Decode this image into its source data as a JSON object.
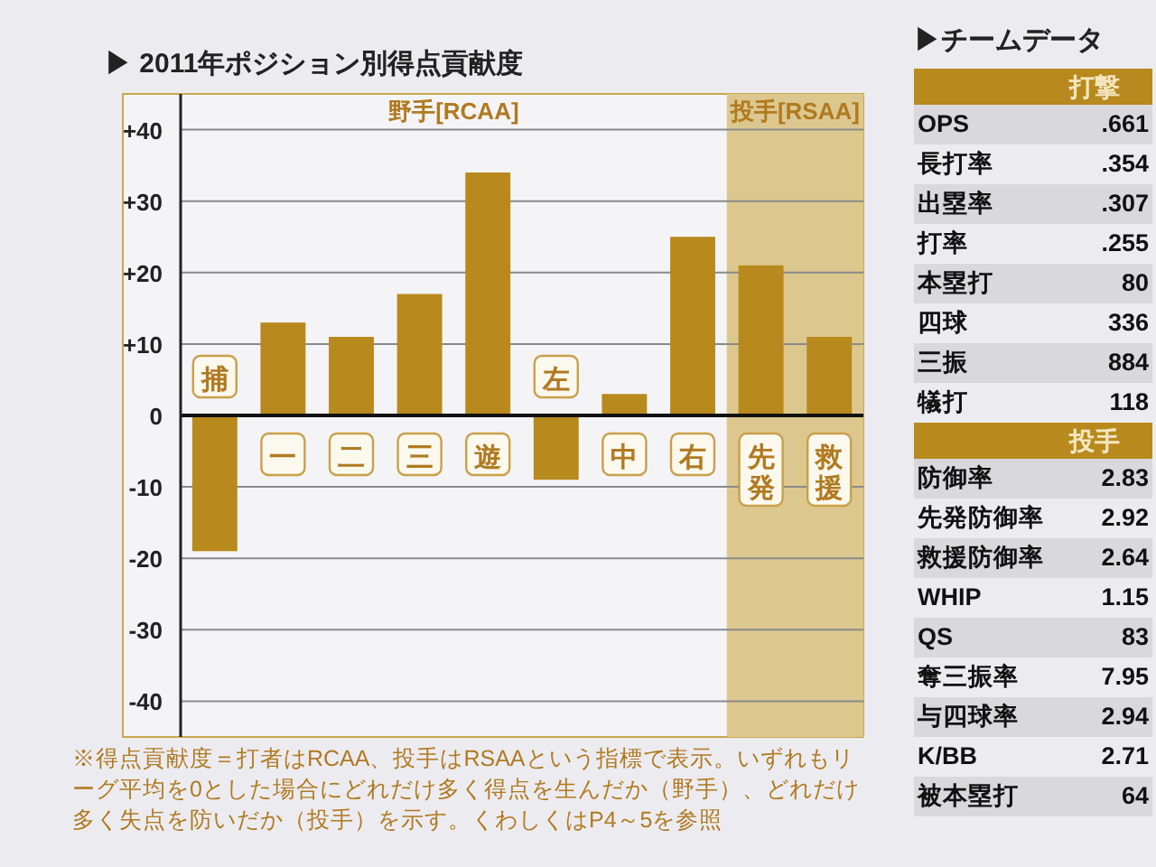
{
  "chart_data": [
    {
      "type": "bar",
      "title": "▶ 2011年ポジション別得点貢献度",
      "categories": [
        "捕",
        "一",
        "二",
        "三",
        "遊",
        "左",
        "中",
        "右",
        "先発",
        "救援"
      ],
      "values": [
        -19,
        13,
        11,
        17,
        34,
        -9,
        3,
        25,
        21,
        11
      ],
      "color": "#b8891c",
      "ylim": [
        -45,
        45
      ],
      "yticks": [
        {
          "value": -40,
          "label": "-40"
        },
        {
          "value": -30,
          "label": "-30"
        },
        {
          "value": -20,
          "label": "-20"
        },
        {
          "value": -10,
          "label": "-10"
        },
        0,
        {
          "value": 10,
          "label": "+10"
        },
        {
          "value": 20,
          "label": "+20"
        },
        {
          "value": 30,
          "label": "+30"
        },
        {
          "value": 40,
          "label": "+40"
        }
      ],
      "grid": "y",
      "bands": [
        {
          "axis": "x",
          "from": "先発",
          "to": "救援",
          "label": "投手[RSAA]",
          "color": "#dcc78e"
        }
      ],
      "annotations": [
        "野手[RCAA]",
        "※得点貢献度＝打者はRCAA、投手はRSAAという指標で表示。いずれもリーグ平均を0とした場合にどれだけ多く得点を生んだか（野手）、どれだけ多く失点を防いだか（投手）を示す。くわしくはP4～5を参照"
      ]
    },
    {
      "type": "other",
      "title": "▶チームデータ",
      "subtitle": "打撃",
      "categories": [
        "OPS",
        "長打率",
        "出塁率",
        "打率",
        "本塁打",
        "四球",
        "三振",
        "犠打"
      ],
      "value_labels": [
        ".661",
        ".354",
        ".307",
        ".255",
        "80",
        "336",
        "884",
        "118"
      ]
    },
    {
      "type": "other",
      "subtitle": "投手",
      "categories": [
        "防御率",
        "先発防御率",
        "救援防御率",
        "WHIP",
        "QS",
        "奪三振率",
        "与四球率",
        "K/BB",
        "被本塁打"
      ],
      "value_labels": [
        "2.83",
        "2.92",
        "2.64",
        "1.15",
        "83",
        "7.95",
        "2.94",
        "2.71",
        "64"
      ]
    }
  ]
}
